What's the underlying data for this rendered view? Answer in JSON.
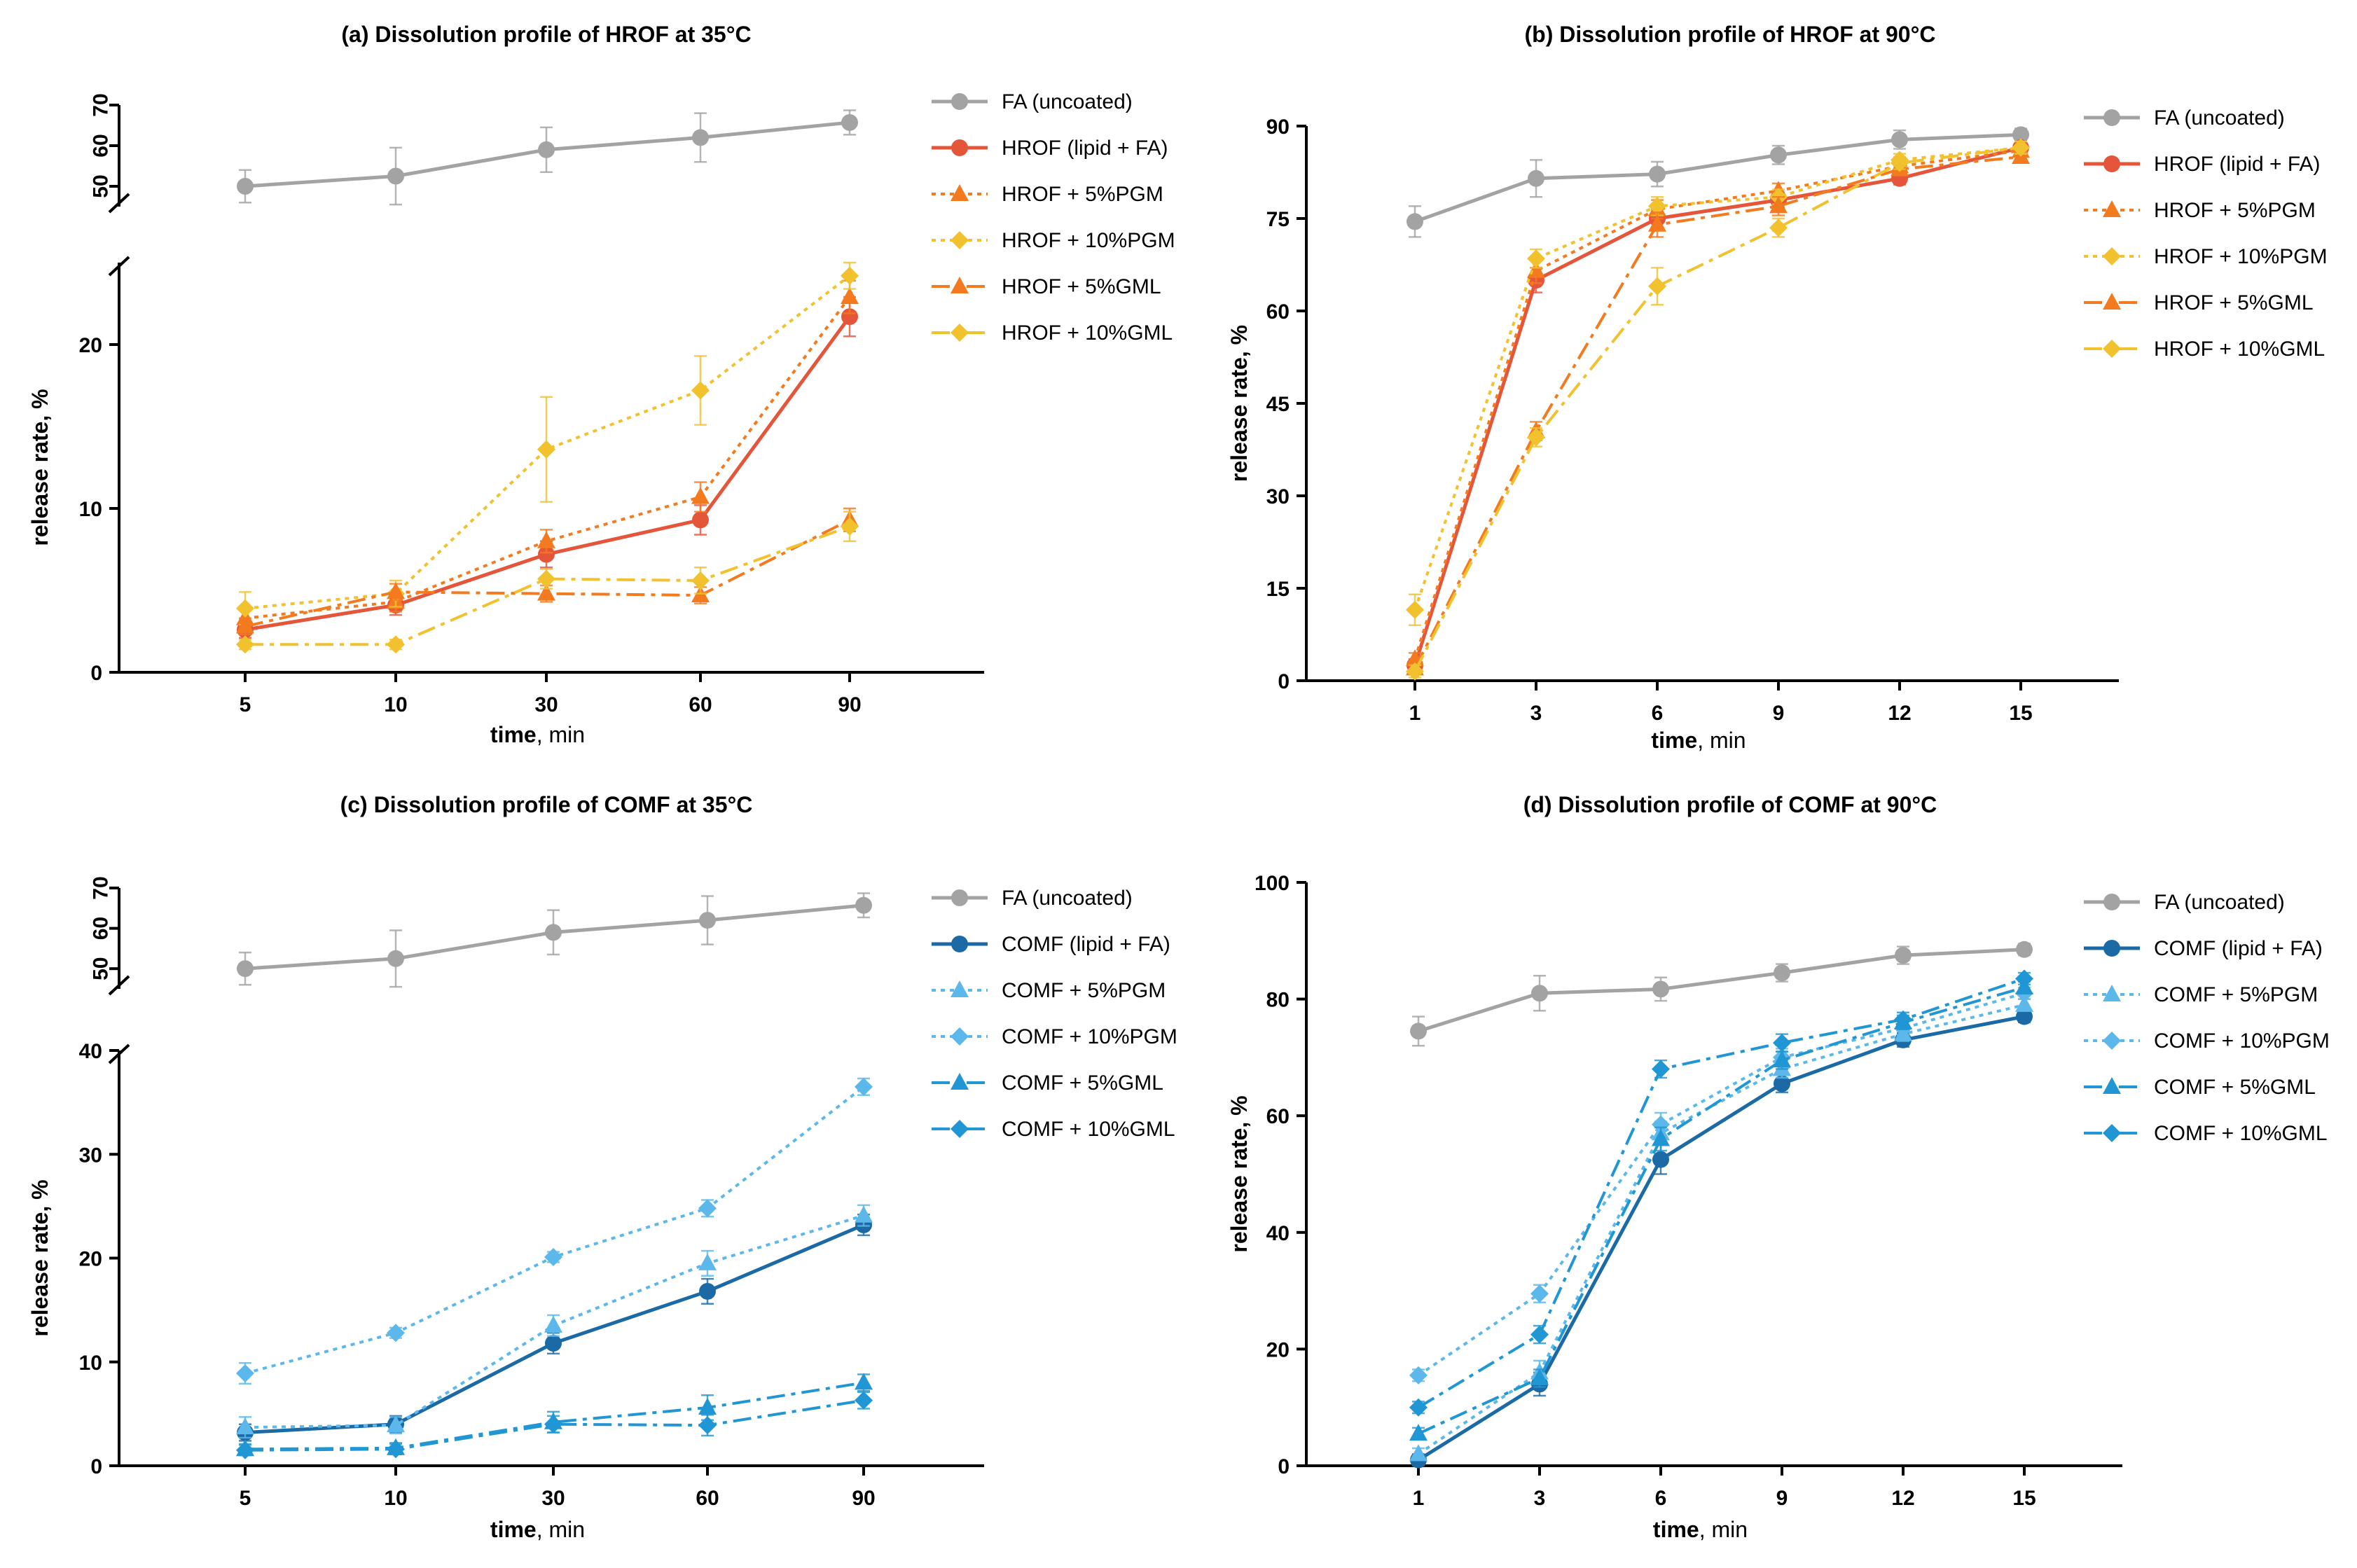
{
  "chart_data": [
    {
      "id": "a",
      "type": "line",
      "title": "(a) Dissolution profile of HROF at 35°C",
      "xlabel_bold": "time",
      "xlabel_rest": ", min",
      "ylabel": "release rate, %",
      "x_ticks": [
        "5",
        "10",
        "30",
        "60",
        "90"
      ],
      "y_broken": true,
      "y_lower_range": [
        0,
        25
      ],
      "y_lower_ticks": [
        0,
        10,
        20
      ],
      "y_upper_range": [
        45,
        70
      ],
      "y_upper_ticks": [
        50,
        60,
        70
      ],
      "series": [
        {
          "name": "FA (uncoated)",
          "color": "#a3a3a3",
          "marker": "circle",
          "dash": "solid",
          "width": 5,
          "values": [
            50,
            52.5,
            59,
            62,
            65.7
          ],
          "errors": [
            4,
            7,
            5.5,
            6,
            3
          ]
        },
        {
          "name": "HROF (lipid + FA)",
          "color": "#e5553a",
          "marker": "circle",
          "dash": "solid",
          "width": 5,
          "values": [
            2.6,
            4.1,
            7.2,
            9.3,
            21.7
          ],
          "errors": [
            0.5,
            0.6,
            0.8,
            0.9,
            1.2
          ]
        },
        {
          "name": "HROF + 5%PGM",
          "color": "#f47a1f",
          "marker": "triangle",
          "dash": "dot",
          "width": 4,
          "values": [
            3.3,
            4.3,
            8.0,
            10.7,
            22.9
          ],
          "errors": [
            0.6,
            0.6,
            0.7,
            0.9,
            1.0
          ]
        },
        {
          "name": "HROF + 10%PGM",
          "color": "#f2c12e",
          "marker": "diamond",
          "dash": "dot",
          "width": 4,
          "values": [
            3.9,
            4.8,
            13.6,
            17.2,
            24.2
          ],
          "errors": [
            1.0,
            0.8,
            3.2,
            2.1,
            0.8
          ]
        },
        {
          "name": "HROF + 5%GML",
          "color": "#f47a1f",
          "marker": "triangle",
          "dash": "dashdot",
          "width": 4,
          "values": [
            2.8,
            4.9,
            4.8,
            4.7,
            9.3
          ],
          "errors": [
            0.5,
            0.5,
            0.5,
            0.5,
            0.7
          ]
        },
        {
          "name": "HROF + 10%GML",
          "color": "#f2c12e",
          "marker": "diamond",
          "dash": "dashdot",
          "width": 4,
          "values": [
            1.7,
            1.7,
            5.7,
            5.6,
            8.9
          ],
          "errors": [
            0.3,
            0.3,
            0.6,
            0.8,
            0.9
          ]
        }
      ]
    },
    {
      "id": "b",
      "type": "line",
      "title": "(b) Dissolution profile of HROF at 90°C",
      "xlabel_bold": "time",
      "xlabel_rest": ", min",
      "ylabel": "release rate, %",
      "x_ticks": [
        "1",
        "3",
        "6",
        "9",
        "12",
        "15"
      ],
      "y_broken": false,
      "y_range": [
        0,
        90
      ],
      "y_ticks": [
        0,
        15,
        30,
        45,
        60,
        75,
        90
      ],
      "series": [
        {
          "name": "FA (uncoated)",
          "color": "#a3a3a3",
          "marker": "circle",
          "dash": "solid",
          "width": 5,
          "values": [
            74.5,
            81.5,
            82.2,
            85.3,
            87.8,
            88.6
          ],
          "errors": [
            2.5,
            3,
            2,
            1.5,
            1.5,
            1
          ]
        },
        {
          "name": "HROF (lipid + FA)",
          "color": "#e5553a",
          "marker": "circle",
          "dash": "solid",
          "width": 5,
          "values": [
            2.5,
            65.0,
            75.0,
            78.0,
            81.5,
            86.5
          ],
          "errors": [
            1,
            2,
            1.5,
            1.2,
            1,
            1
          ]
        },
        {
          "name": "HROF + 5%PGM",
          "color": "#f47a1f",
          "marker": "triangle",
          "dash": "dot",
          "width": 4,
          "values": [
            3.5,
            66.5,
            76.5,
            79.5,
            83.5,
            86.0
          ],
          "errors": [
            1,
            2,
            1.5,
            1.2,
            1,
            1
          ]
        },
        {
          "name": "HROF + 10%PGM",
          "color": "#f2c12e",
          "marker": "diamond",
          "dash": "dot",
          "width": 4,
          "values": [
            11.5,
            68.5,
            77.0,
            78.5,
            84.5,
            86.5
          ],
          "errors": [
            2.5,
            1.5,
            1.5,
            1.2,
            1,
            1
          ]
        },
        {
          "name": "HROF + 5%GML",
          "color": "#f47a1f",
          "marker": "triangle",
          "dash": "dashdot",
          "width": 4,
          "values": [
            2.0,
            40.5,
            74.0,
            77.0,
            83.0,
            85.0
          ],
          "errors": [
            1,
            1.5,
            2,
            1.5,
            1,
            1
          ]
        },
        {
          "name": "HROF + 10%GML",
          "color": "#f2c12e",
          "marker": "diamond",
          "dash": "dashdot",
          "width": 4,
          "values": [
            1.5,
            39.5,
            64.0,
            73.5,
            84.0,
            86.5
          ],
          "errors": [
            1,
            1.5,
            3,
            1.5,
            1,
            1
          ]
        }
      ]
    },
    {
      "id": "c",
      "type": "line",
      "title": "(c) Dissolution profile of COMF at 35°C",
      "xlabel_bold": "time",
      "xlabel_rest": ", min",
      "ylabel": "release rate, %",
      "x_ticks": [
        "5",
        "10",
        "30",
        "60",
        "90"
      ],
      "y_broken": true,
      "y_lower_range": [
        0,
        40
      ],
      "y_lower_ticks": [
        0,
        10,
        20,
        30,
        40
      ],
      "y_upper_range": [
        45,
        70
      ],
      "y_upper_ticks": [
        50,
        60,
        70
      ],
      "series": [
        {
          "name": "FA (uncoated)",
          "color": "#a3a3a3",
          "marker": "circle",
          "dash": "solid",
          "width": 5,
          "values": [
            50,
            52.5,
            59,
            62,
            65.7
          ],
          "errors": [
            4,
            7,
            5.5,
            6,
            3
          ]
        },
        {
          "name": "COMF (lipid + FA)",
          "color": "#1b6aa5",
          "marker": "circle",
          "dash": "solid",
          "width": 5,
          "values": [
            3.2,
            4.0,
            11.8,
            16.8,
            23.2
          ],
          "errors": [
            0.8,
            0.8,
            1.0,
            1.2,
            1.0
          ]
        },
        {
          "name": "COMF + 5%PGM",
          "color": "#5cb8ea",
          "marker": "triangle",
          "dash": "dot",
          "width": 4,
          "values": [
            3.7,
            3.9,
            13.5,
            19.5,
            24.1
          ],
          "errors": [
            1.0,
            0.8,
            1.0,
            1.2,
            1.0
          ]
        },
        {
          "name": "COMF + 10%PGM",
          "color": "#5cb8ea",
          "marker": "diamond",
          "dash": "dot",
          "width": 4,
          "values": [
            8.9,
            12.8,
            20.1,
            24.8,
            36.5
          ],
          "errors": [
            1.0,
            0.5,
            0.5,
            0.8,
            0.8
          ]
        },
        {
          "name": "COMF + 5%GML",
          "color": "#2196d4",
          "marker": "triangle",
          "dash": "dashdot",
          "width": 4,
          "values": [
            1.6,
            1.7,
            4.2,
            5.6,
            8.0
          ],
          "errors": [
            0.5,
            0.5,
            1.0,
            1.2,
            0.8
          ]
        },
        {
          "name": "COMF + 10%GML",
          "color": "#2196d4",
          "marker": "diamond",
          "dash": "dashdot",
          "width": 4,
          "values": [
            1.5,
            1.6,
            4.0,
            3.9,
            6.3
          ],
          "errors": [
            0.5,
            0.5,
            0.8,
            1.0,
            0.8
          ]
        }
      ]
    },
    {
      "id": "d",
      "type": "line",
      "title": "(d) Dissolution profile of COMF at 90°C",
      "xlabel_bold": "time",
      "xlabel_rest": ", min",
      "ylabel": "release rate, %",
      "x_ticks": [
        "1",
        "3",
        "6",
        "9",
        "12",
        "15"
      ],
      "y_broken": false,
      "y_range": [
        0,
        100
      ],
      "y_ticks": [
        0,
        20,
        40,
        60,
        80,
        100
      ],
      "series": [
        {
          "name": "FA (uncoated)",
          "color": "#a3a3a3",
          "marker": "circle",
          "dash": "solid",
          "width": 5,
          "values": [
            74.5,
            81.0,
            81.7,
            84.5,
            87.5,
            88.5
          ],
          "errors": [
            2.5,
            3,
            2,
            1.5,
            1.5,
            1
          ]
        },
        {
          "name": "COMF (lipid + FA)",
          "color": "#1b6aa5",
          "marker": "circle",
          "dash": "solid",
          "width": 5,
          "values": [
            1.0,
            14.0,
            52.5,
            65.5,
            73.0,
            77.0
          ],
          "errors": [
            1,
            2,
            2.5,
            1.5,
            1.2,
            1
          ]
        },
        {
          "name": "COMF + 5%PGM",
          "color": "#5cb8ea",
          "marker": "triangle",
          "dash": "dot",
          "width": 4,
          "values": [
            2.0,
            16.0,
            57.0,
            68.0,
            74.0,
            79.0
          ],
          "errors": [
            1,
            2,
            2,
            1.5,
            1.2,
            1
          ]
        },
        {
          "name": "COMF + 10%PGM",
          "color": "#5cb8ea",
          "marker": "diamond",
          "dash": "dot",
          "width": 4,
          "values": [
            15.5,
            29.5,
            58.5,
            70.0,
            75.0,
            81.0
          ],
          "errors": [
            1,
            1.5,
            2,
            1.5,
            1.2,
            1
          ]
        },
        {
          "name": "COMF + 5%GML",
          "color": "#2196d4",
          "marker": "triangle",
          "dash": "dashdot",
          "width": 4,
          "values": [
            5.5,
            15.0,
            56.0,
            69.5,
            76.0,
            82.0
          ],
          "errors": [
            1,
            1.5,
            2,
            1.5,
            1.2,
            1
          ]
        },
        {
          "name": "COMF + 10%GML",
          "color": "#2196d4",
          "marker": "diamond",
          "dash": "dashdot",
          "width": 4,
          "values": [
            10.0,
            22.5,
            68.0,
            72.5,
            76.5,
            83.5
          ],
          "errors": [
            1,
            1.5,
            1.5,
            1.5,
            1.2,
            1
          ]
        }
      ]
    }
  ]
}
